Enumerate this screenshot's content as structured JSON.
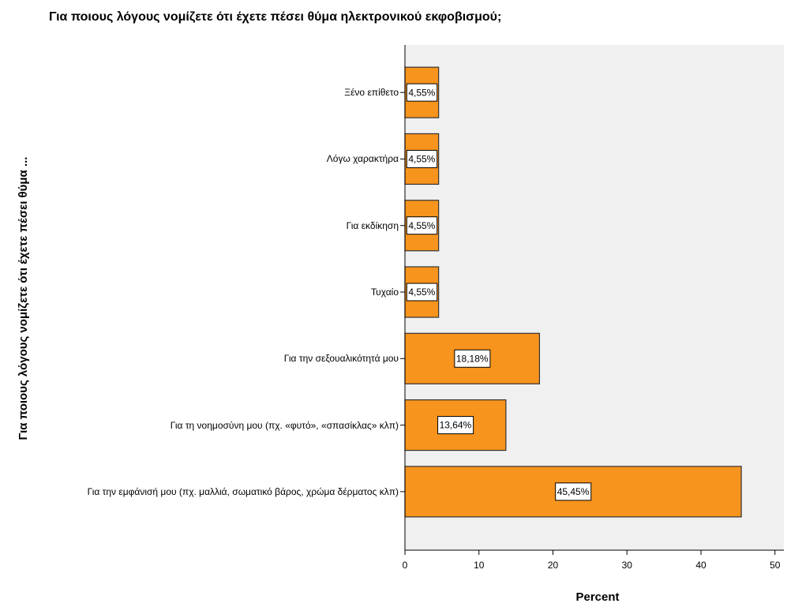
{
  "chart_data": {
    "type": "bar",
    "orientation": "horizontal",
    "title": "Για ποιους λόγους νομίζετε ότι έχετε πέσει θύμα ηλεκτρονικού εκφοβισμού;",
    "x_label": "Percent",
    "y_label": "Για ποιους λόγους νομίζετε ότι έχετε πέσει θύμα ...",
    "categories": [
      "Ξένο επίθετο",
      "Λόγω χαρακτήρα",
      "Για εκδίκηση",
      "Τυχαίο",
      "Για την σεξουαλικότητά μου",
      "Για τη νοημοσύνη μου (πχ. «φυτό», «σπασίκλας» κλπ)",
      "Για την εμφάνισή μου (πχ. μαλλιά, σωματικό βάρος, χρώμα δέρματος κλπ)"
    ],
    "values": [
      4.55,
      4.55,
      4.55,
      4.55,
      18.18,
      13.64,
      45.45
    ],
    "value_labels": [
      "4,55%",
      "4,55%",
      "4,55%",
      "4,55%",
      "18,18%",
      "13,64%",
      "45,45%"
    ],
    "color": "#f7941d",
    "xlim": [
      0,
      51.2
    ],
    "xticks": [
      0,
      10,
      20,
      30,
      40,
      50
    ]
  }
}
